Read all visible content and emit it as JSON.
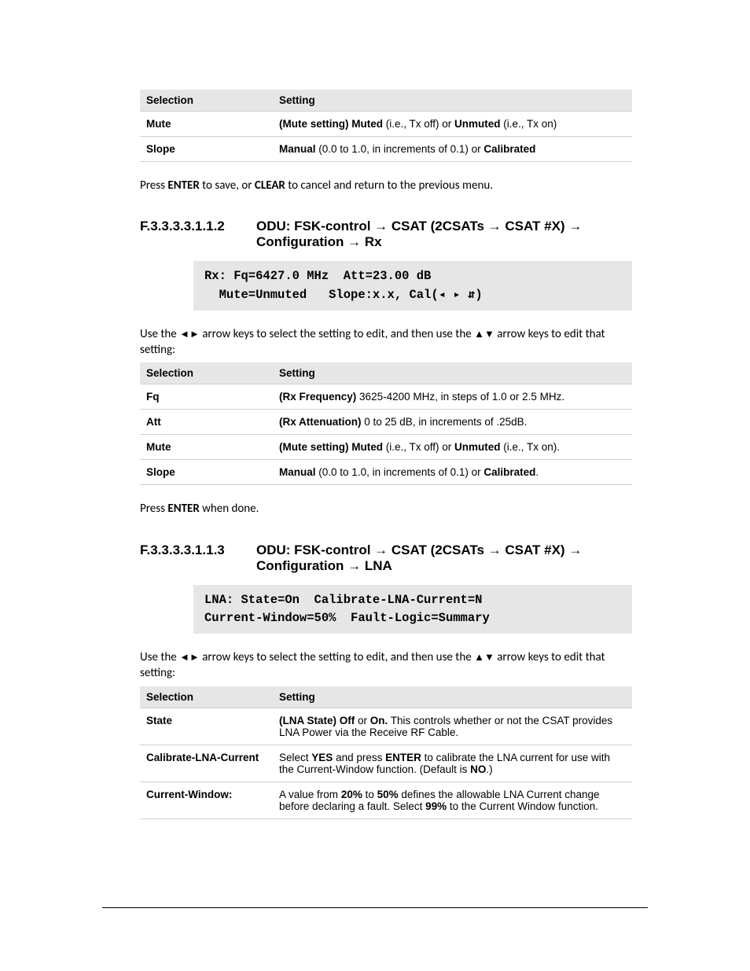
{
  "colors": {
    "page_bg": "#ffffff",
    "text": "#000000",
    "table_header_bg": "#e6e6e6",
    "table_border": "#d0d0d0",
    "lcd_bg": "#e6e6e6"
  },
  "typography": {
    "body_font": "Calibri",
    "body_size_pt": 11,
    "heading_font": "Arial",
    "heading_size_pt": 13,
    "table_font": "Arial",
    "table_size_pt": 10,
    "mono_font": "Courier New",
    "mono_size_pt": 11
  },
  "glyphs": {
    "arrow_right": "→",
    "tri_left": "◄",
    "tri_right": "►",
    "tri_up": "▲",
    "tri_down": "▼",
    "lcd_left": "◂",
    "lcd_right": "▸",
    "lcd_updown": "⇵"
  },
  "table1": {
    "headers": [
      "Selection",
      "Setting"
    ],
    "rows": [
      {
        "sel": "Mute",
        "parts": [
          [
            "b",
            "(Mute setting) Muted"
          ],
          [
            "t",
            " (i.e., Tx off) or "
          ],
          [
            "b",
            "Unmuted"
          ],
          [
            "t",
            " (i.e., Tx on)"
          ]
        ]
      },
      {
        "sel": "Slope",
        "parts": [
          [
            "b",
            "Manual"
          ],
          [
            "t",
            " (0.0 to 1.0, in increments of 0.1) or "
          ],
          [
            "b",
            "Calibrated"
          ]
        ]
      }
    ]
  },
  "para1_parts": [
    [
      "t",
      "Press "
    ],
    [
      "b",
      "ENTER"
    ],
    [
      "t",
      " to save, or "
    ],
    [
      "b",
      "CLEAR"
    ],
    [
      "t",
      " to cancel and return to the previous menu."
    ]
  ],
  "sec2": {
    "num": "F.3.3.3.3.1.1.2",
    "title_parts": [
      [
        "t",
        "ODU: FSK-control "
      ],
      [
        "g",
        "arrow_right"
      ],
      [
        "t",
        " CSAT (2CSATs "
      ],
      [
        "g",
        "arrow_right"
      ],
      [
        "t",
        " CSAT #X) "
      ],
      [
        "g",
        "arrow_right"
      ],
      [
        "t",
        " Configuration "
      ],
      [
        "g",
        "arrow_right"
      ],
      [
        "t",
        " Rx"
      ]
    ]
  },
  "lcd2": {
    "line1": "Rx: Fq=6427.0 MHz  Att=23.00 dB",
    "line2_pre": "  Mute=Unmuted   Slope:x.x, Cal(",
    "line2_post": ")"
  },
  "para2_parts": [
    [
      "t",
      "Use the "
    ],
    [
      "tri",
      "◄"
    ],
    [
      "tri",
      "►"
    ],
    [
      "t",
      " arrow keys to select the setting to edit, and then use the "
    ],
    [
      "tri",
      "▲"
    ],
    [
      "tri",
      "▼"
    ],
    [
      "t",
      " arrow keys to edit that setting:"
    ]
  ],
  "table2": {
    "headers": [
      "Selection",
      "Setting"
    ],
    "rows": [
      {
        "sel": "Fq",
        "parts": [
          [
            "b",
            "(Rx Frequency)"
          ],
          [
            "t",
            " 3625-4200 MHz, in steps of 1.0 or 2.5 MHz."
          ]
        ]
      },
      {
        "sel": "Att",
        "parts": [
          [
            "b",
            "(Rx Attenuation)"
          ],
          [
            "t",
            " 0 to 25 dB, in increments of .25dB."
          ]
        ]
      },
      {
        "sel": "Mute",
        "parts": [
          [
            "b",
            "(Mute setting) Muted"
          ],
          [
            "t",
            " (i.e., Tx off) or "
          ],
          [
            "b",
            "Unmuted"
          ],
          [
            "t",
            " (i.e., Tx on)."
          ]
        ]
      },
      {
        "sel": "Slope",
        "parts": [
          [
            "b",
            "Manual"
          ],
          [
            "t",
            " (0.0 to 1.0, in increments of 0.1) or "
          ],
          [
            "b",
            "Calibrated"
          ],
          [
            "t",
            "."
          ]
        ]
      }
    ]
  },
  "para3_parts": [
    [
      "t",
      "Press "
    ],
    [
      "b",
      "ENTER"
    ],
    [
      "t",
      " when done."
    ]
  ],
  "sec3": {
    "num": "F.3.3.3.3.1.1.3",
    "title_parts": [
      [
        "t",
        "ODU: FSK-control "
      ],
      [
        "g",
        "arrow_right"
      ],
      [
        "t",
        " CSAT (2CSATs "
      ],
      [
        "g",
        "arrow_right"
      ],
      [
        "t",
        " CSAT #X) "
      ],
      [
        "g",
        "arrow_right"
      ],
      [
        "t",
        " Configuration "
      ],
      [
        "g",
        "arrow_right"
      ],
      [
        "t",
        " LNA"
      ]
    ]
  },
  "lcd3": {
    "line1": "LNA: State=On  Calibrate-LNA-Current=N",
    "line2": "Current-Window=50%  Fault-Logic=Summary"
  },
  "para4_parts": [
    [
      "t",
      "Use the "
    ],
    [
      "tri",
      "◄"
    ],
    [
      "tri",
      "►"
    ],
    [
      "t",
      " arrow keys to select the setting to edit, and then use the "
    ],
    [
      "tri",
      "▲"
    ],
    [
      "tri",
      "▼"
    ],
    [
      "t",
      " arrow keys to edit that setting:"
    ]
  ],
  "table3": {
    "headers": [
      "Selection",
      "Setting"
    ],
    "rows": [
      {
        "sel": "State",
        "parts": [
          [
            "b",
            "(LNA State) Off"
          ],
          [
            "t",
            " or "
          ],
          [
            "b",
            "On."
          ],
          [
            "t",
            " This controls whether or not the CSAT provides LNA Power via the Receive RF Cable."
          ]
        ]
      },
      {
        "sel": "Calibrate-LNA-Current",
        "parts": [
          [
            "t",
            "Select "
          ],
          [
            "b",
            "YES"
          ],
          [
            "t",
            " and press "
          ],
          [
            "b",
            "ENTER"
          ],
          [
            "t",
            " to calibrate the LNA current for use with the Current-Window function. (Default is "
          ],
          [
            "b",
            "NO"
          ],
          [
            "t",
            ".)"
          ]
        ]
      },
      {
        "sel": "Current-Window:",
        "parts": [
          [
            "t",
            "A value from "
          ],
          [
            "b",
            "20%"
          ],
          [
            "t",
            " to "
          ],
          [
            "b",
            "50%"
          ],
          [
            "t",
            " defines the allowable LNA Current change before declaring a fault. Select "
          ],
          [
            "b",
            "99%"
          ],
          [
            "t",
            " to           the Current Window function."
          ]
        ]
      }
    ]
  }
}
